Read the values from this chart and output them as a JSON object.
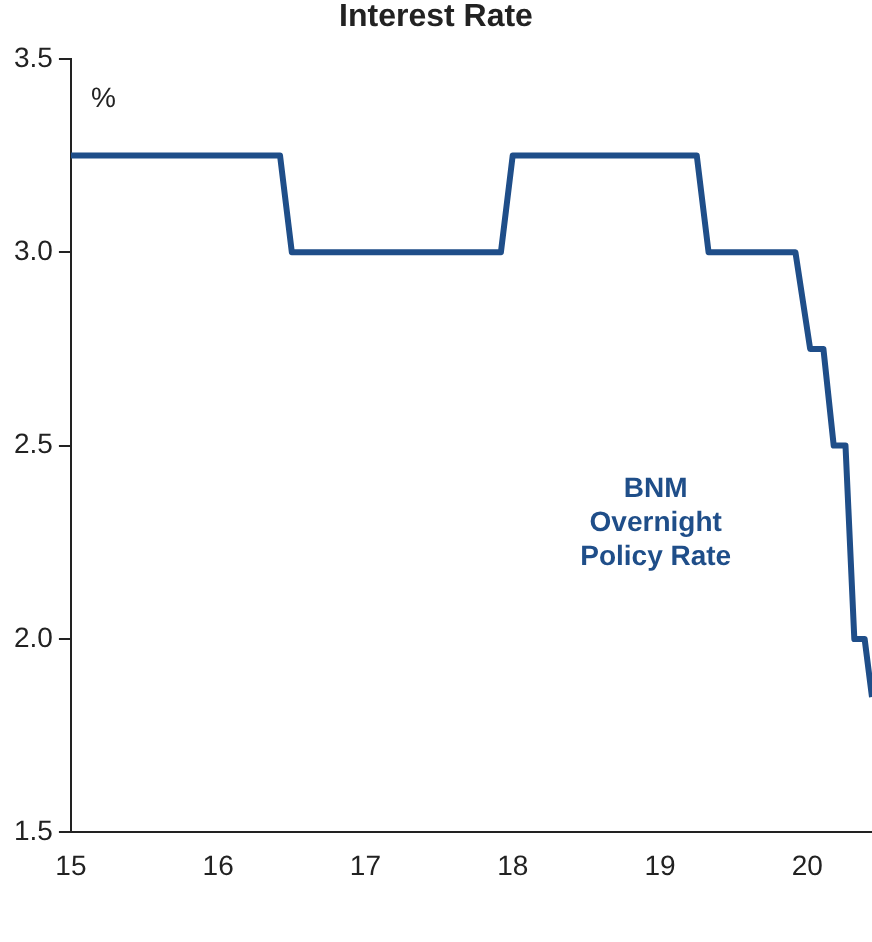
{
  "chart_data": {
    "type": "line",
    "title": "Interest Rate",
    "ylabel": "%",
    "xlim": [
      15,
      20.44
    ],
    "xticks": [
      15,
      16,
      17,
      18,
      19,
      20
    ],
    "ylim": [
      1.5,
      3.5
    ],
    "yticks": [
      {
        "value": 1.5,
        "label": "1.5"
      },
      {
        "value": 2,
        "label": "2.0"
      },
      {
        "value": 2.5,
        "label": "2.5"
      },
      {
        "value": 3,
        "label": "3.0"
      },
      {
        "value": 3.5,
        "label": "3.5"
      }
    ],
    "grid": false,
    "legend": false,
    "marker": "none",
    "line_style": "solid",
    "series": [
      {
        "name": "BNM Overnight Policy Rate",
        "color": "#1f4e89",
        "x": [
          15,
          16.42,
          16.5,
          17.92,
          18.0,
          19.25,
          19.33,
          19.92,
          20.02,
          20.11,
          20.18,
          20.26,
          20.32,
          20.39,
          20.44
        ],
        "values": [
          3.25,
          3.25,
          3.0,
          3.0,
          3.25,
          3.25,
          3.0,
          3.0,
          2.75,
          2.75,
          2.5,
          2.5,
          2.0,
          2.0,
          1.85
        ]
      }
    ]
  }
}
